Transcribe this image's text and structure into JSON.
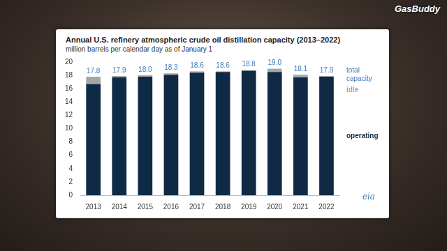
{
  "watermark": "GasBuddy",
  "chart_data": {
    "type": "bar",
    "title": "Annual U.S. refinery atmospheric crude oil distillation capacity (2013–2022)",
    "subtitle": "million barrels per calendar day as of January 1",
    "source": "eia",
    "categories": [
      "2013",
      "2014",
      "2015",
      "2016",
      "2017",
      "2018",
      "2019",
      "2020",
      "2021",
      "2022"
    ],
    "series": [
      {
        "name": "operating",
        "color": "#0f2a45",
        "values": [
          16.7,
          17.7,
          17.8,
          18.1,
          18.4,
          18.5,
          18.7,
          18.5,
          17.7,
          17.8
        ]
      },
      {
        "name": "idle",
        "color": "#a6a6a6",
        "values": [
          1.1,
          0.2,
          0.2,
          0.2,
          0.2,
          0.1,
          0.1,
          0.5,
          0.4,
          0.1
        ]
      }
    ],
    "totals": {
      "name": "total capacity",
      "color": "#3d7ab8",
      "values": [
        17.8,
        17.9,
        18.0,
        18.3,
        18.6,
        18.6,
        18.8,
        19.0,
        18.1,
        17.9
      ],
      "value_labels": [
        "17.8",
        "17.9",
        "18.0",
        "18.3",
        "18.6",
        "18.6",
        "18.8",
        "19.0",
        "18.1",
        "17.9"
      ]
    },
    "stacked": true,
    "grid": false,
    "ylim": [
      0,
      20
    ],
    "yticks": [
      0,
      2,
      4,
      6,
      8,
      10,
      12,
      14,
      16,
      18,
      20
    ]
  }
}
